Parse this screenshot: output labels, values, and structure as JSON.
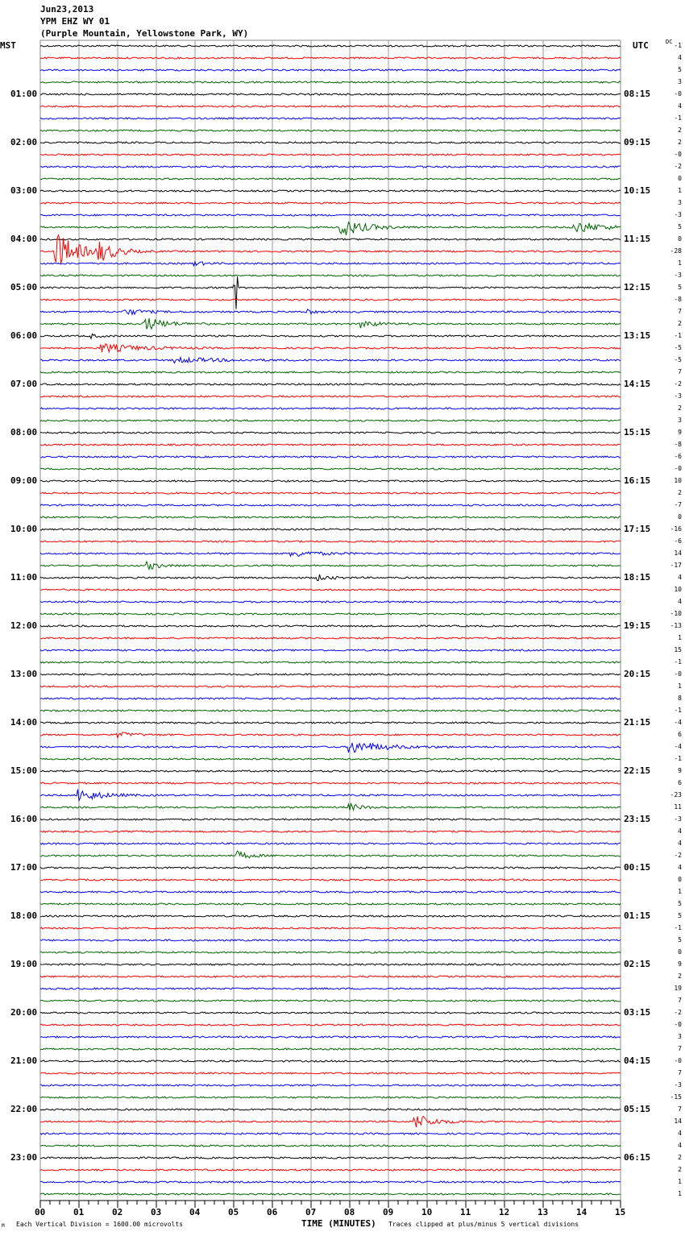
{
  "header": {
    "date": "Jun23,2013",
    "station": "YPM EHZ WY 01",
    "location": "(Purple Mountain, Yellowstone Park, WY)"
  },
  "chart_data": {
    "type": "line",
    "title": "YPM EHZ WY 01 helicorder",
    "left_axis_title": "MST",
    "right_axis_title": "UTC",
    "dc_title": "DC",
    "xlabel": "TIME (MINUTES)",
    "xlim": [
      0,
      15
    ],
    "x_ticks": [
      "00",
      "01",
      "02",
      "03",
      "04",
      "05",
      "06",
      "07",
      "08",
      "09",
      "10",
      "11",
      "12",
      "13",
      "14",
      "15"
    ],
    "trace_minutes": 15,
    "trace_count": 96,
    "colors": [
      "#000000",
      "#ff0000",
      "#0000ff",
      "#006400"
    ],
    "left_labels": [
      "",
      "01:00",
      "02:00",
      "03:00",
      "04:00",
      "05:00",
      "06:00",
      "07:00",
      "08:00",
      "09:00",
      "10:00",
      "11:00",
      "12:00",
      "13:00",
      "14:00",
      "15:00",
      "16:00",
      "17:00",
      "18:00",
      "19:00",
      "20:00",
      "21:00",
      "22:00",
      "23:00"
    ],
    "right_labels": [
      "",
      "08:15",
      "09:15",
      "10:15",
      "11:15",
      "12:15",
      "13:15",
      "14:15",
      "15:15",
      "16:15",
      "17:15",
      "18:15",
      "19:15",
      "20:15",
      "21:15",
      "22:15",
      "23:15",
      "00:15",
      "01:15",
      "02:15",
      "03:15",
      "04:15",
      "05:15",
      "06:15"
    ],
    "dc_offsets": [
      "-1",
      "4",
      "5",
      "3",
      "-0",
      "4",
      "-1",
      "2",
      "2",
      "-0",
      "-2",
      "0",
      "1",
      "3",
      "-3",
      "5",
      "0",
      "-28",
      "1",
      "-3",
      "5",
      "-8",
      "7",
      "2",
      "-1",
      "-5",
      "-5",
      "7",
      "-2",
      "-3",
      "2",
      "3",
      "9",
      "-8",
      "-6",
      "-0",
      "10",
      "2",
      "-7",
      "0",
      "-16",
      "-6",
      "14",
      "-17",
      "4",
      "10",
      "4",
      "-10",
      "-13",
      "1",
      "15",
      "-1",
      "-0",
      "1",
      "8",
      "-1",
      "-4",
      "6",
      "-4",
      "-1",
      "9",
      "6",
      "-23",
      "11",
      "-3",
      "4",
      "4",
      "-2",
      "4",
      "0",
      "1",
      "5",
      "5",
      "-1",
      "5",
      "0",
      "9",
      "2",
      "19",
      "7",
      "-2",
      "-0",
      "3",
      "7",
      "-0",
      "7",
      "-3",
      "-15",
      "7",
      "14",
      "4",
      "4",
      "2",
      "2",
      "1",
      "1"
    ],
    "events": [
      {
        "trace": 15,
        "minute": 7.8,
        "amp": 14,
        "dur": 1.0
      },
      {
        "trace": 15,
        "minute": 13.8,
        "amp": 10,
        "dur": 1.2
      },
      {
        "trace": 17,
        "minute": 0.4,
        "amp": 30,
        "dur": 1.0
      },
      {
        "trace": 17,
        "minute": 1.5,
        "amp": 14,
        "dur": 0.8
      },
      {
        "trace": 18,
        "minute": 4.0,
        "amp": 3,
        "dur": 0.5
      },
      {
        "trace": 20,
        "minute": 5.05,
        "amp": 50,
        "dur": 0.05
      },
      {
        "trace": 22,
        "minute": 2.2,
        "amp": 5,
        "dur": 0.8
      },
      {
        "trace": 22,
        "minute": 6.9,
        "amp": 4,
        "dur": 0.3
      },
      {
        "trace": 23,
        "minute": 2.7,
        "amp": 11,
        "dur": 0.9
      },
      {
        "trace": 23,
        "minute": 8.3,
        "amp": 6,
        "dur": 0.7
      },
      {
        "trace": 24,
        "minute": 1.3,
        "amp": 3,
        "dur": 0.4
      },
      {
        "trace": 25,
        "minute": 1.6,
        "amp": 7,
        "dur": 1.6
      },
      {
        "trace": 26,
        "minute": 3.5,
        "amp": 4,
        "dur": 2.0
      },
      {
        "trace": 42,
        "minute": 6.5,
        "amp": 5,
        "dur": 1.2
      },
      {
        "trace": 43,
        "minute": 2.8,
        "amp": 6,
        "dur": 0.5
      },
      {
        "trace": 44,
        "minute": 7.2,
        "amp": 4,
        "dur": 0.6
      },
      {
        "trace": 57,
        "minute": 2.0,
        "amp": 4,
        "dur": 0.8
      },
      {
        "trace": 58,
        "minute": 8.0,
        "amp": 10,
        "dur": 1.5
      },
      {
        "trace": 62,
        "minute": 1.0,
        "amp": 10,
        "dur": 1.0
      },
      {
        "trace": 63,
        "minute": 8.0,
        "amp": 5,
        "dur": 0.6
      },
      {
        "trace": 67,
        "minute": 5.1,
        "amp": 6,
        "dur": 0.6
      },
      {
        "trace": 89,
        "minute": 9.7,
        "amp": 12,
        "dur": 0.8
      }
    ]
  },
  "footer": {
    "scale_note": "Each Vertical Division = 1600.00 microvolts",
    "clip_note": "Traces clipped at plus/minus 5 vertical divisions",
    "corner_mark": "M"
  }
}
